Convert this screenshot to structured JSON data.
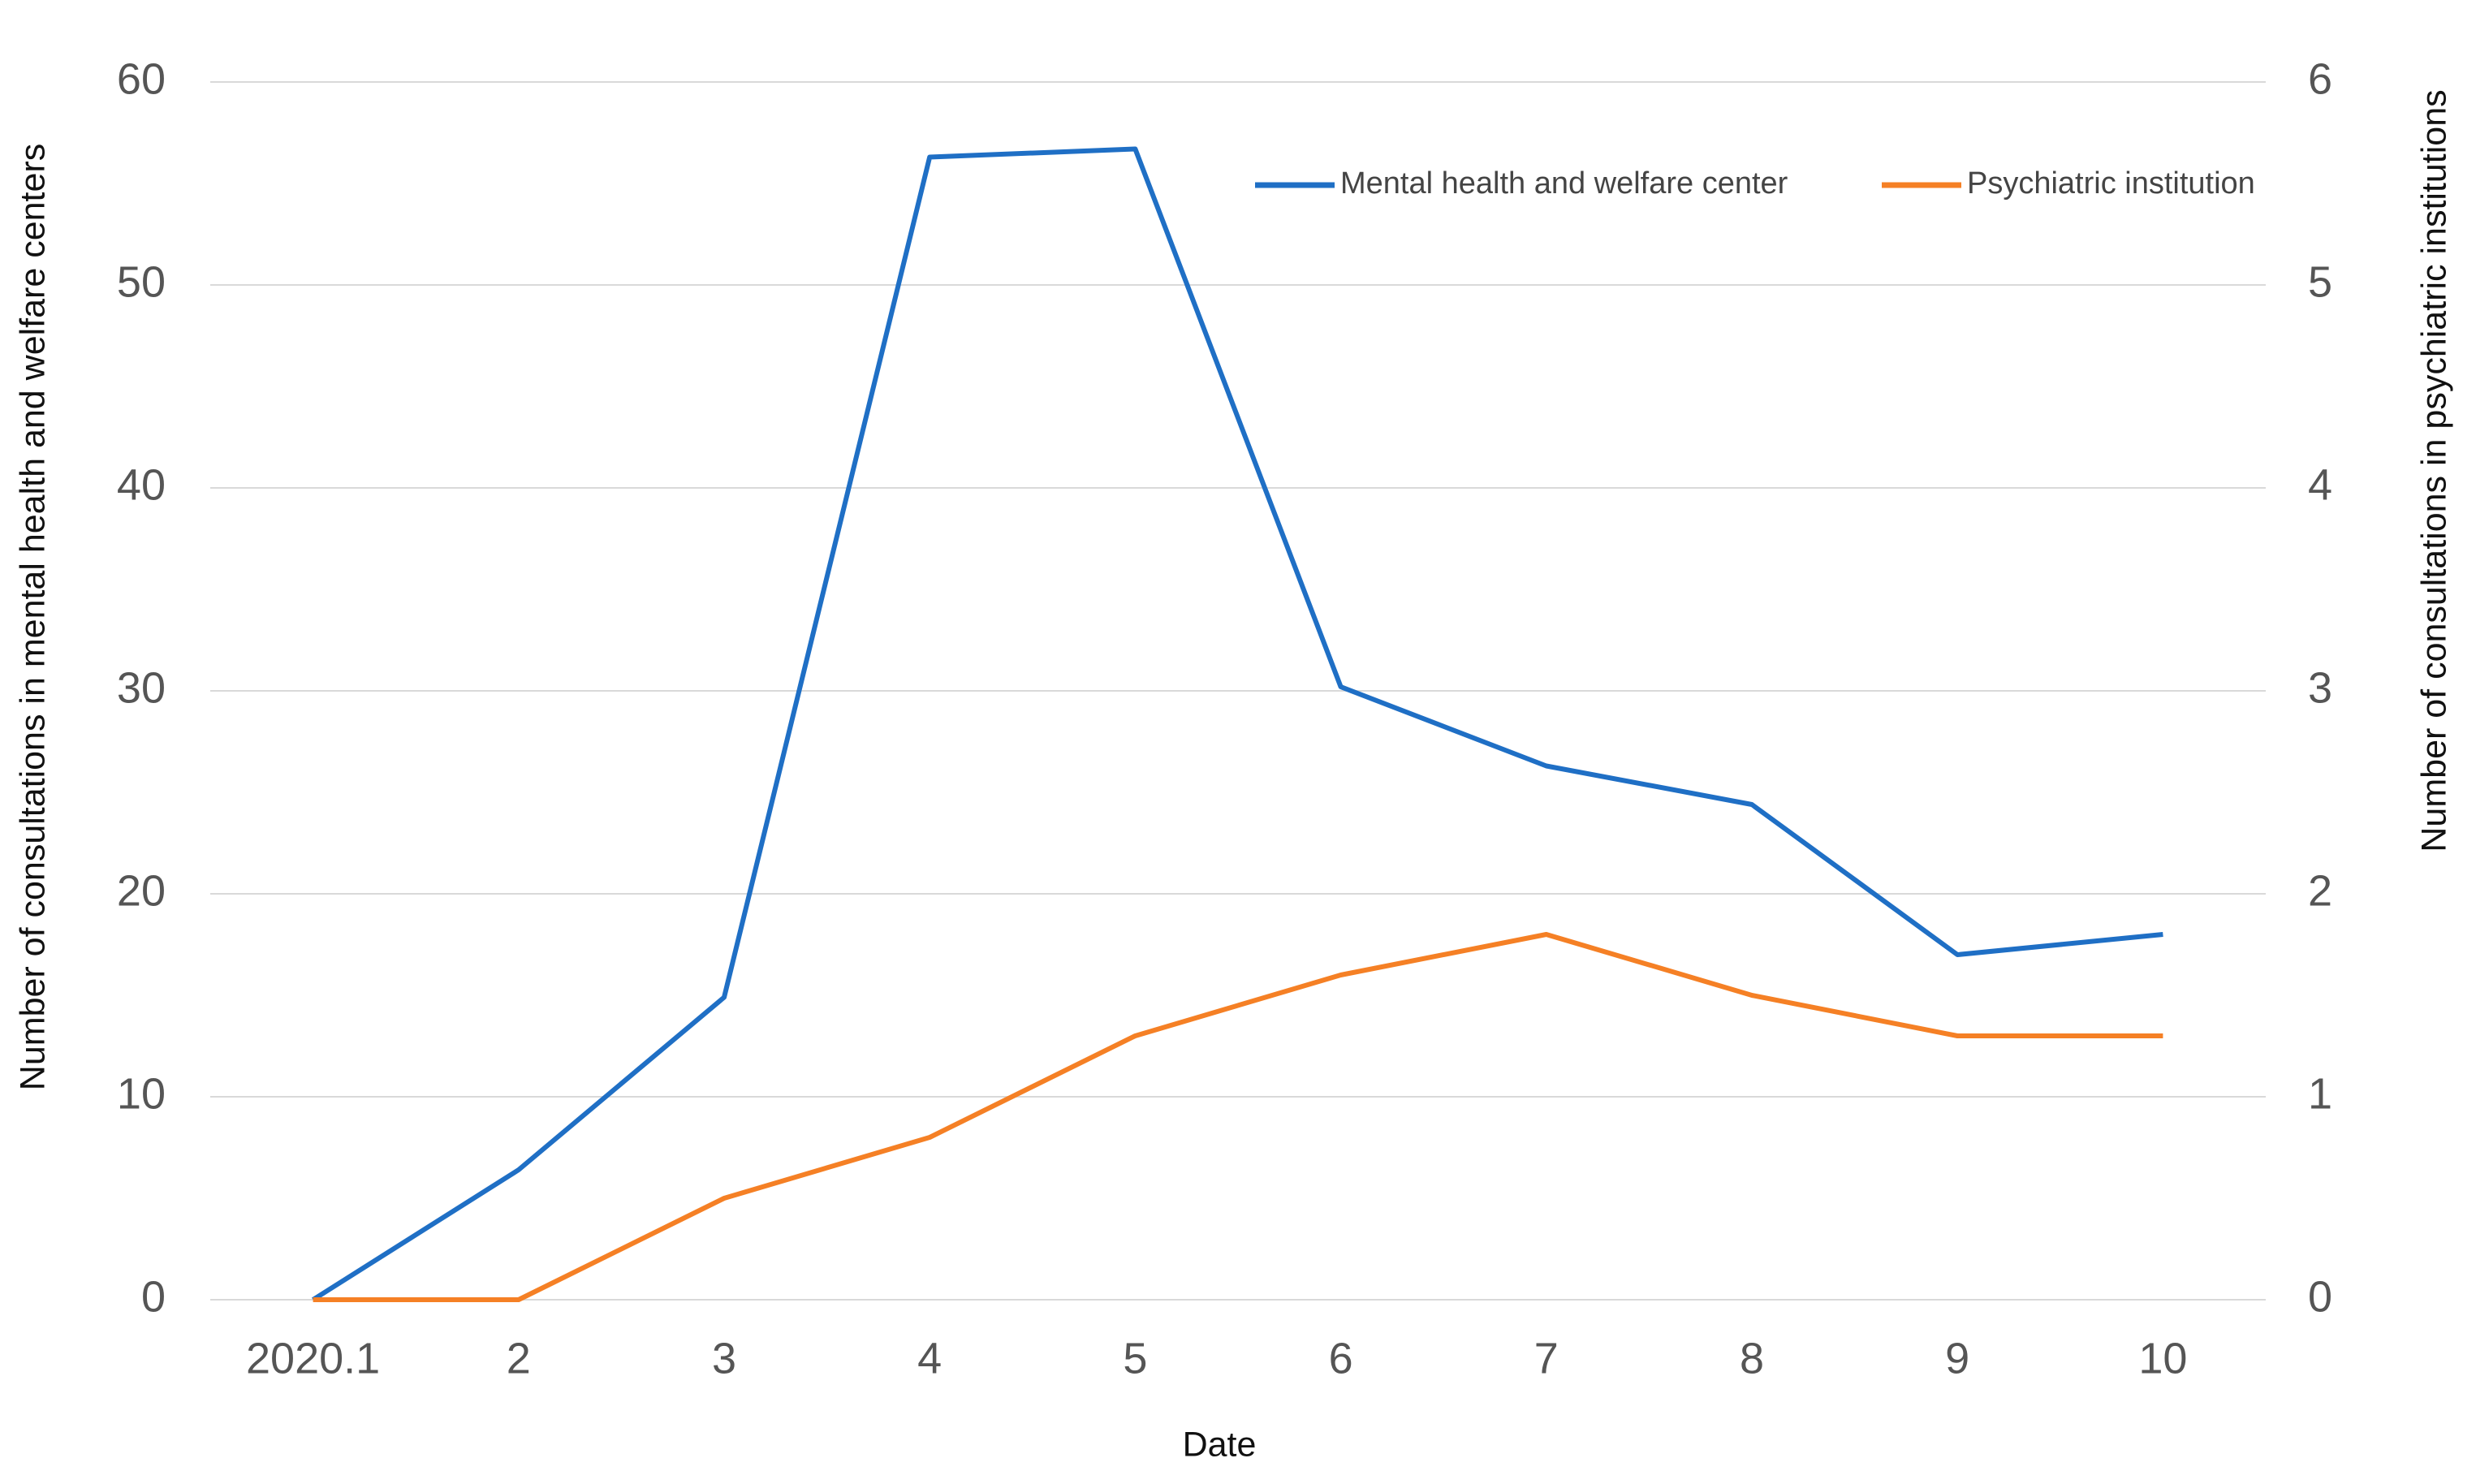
{
  "chart_data": {
    "type": "line",
    "x_label": "Date",
    "y_label": "Number of consultations in mental health and welfare centers",
    "y2_label": "Number of consultations in psychiatric institutions",
    "categories": [
      "2020.1",
      "2",
      "3",
      "4",
      "5",
      "6",
      "7",
      "8",
      "9",
      "10"
    ],
    "series": [
      {
        "name": "Mental health and welfare center",
        "color": "#1f6fc5",
        "values": [
          0,
          6.4,
          14.9,
          56.3,
          56.7,
          30.2,
          26.3,
          24.4,
          17.0,
          18.0
        ]
      },
      {
        "name": "Psychiatric institution",
        "color": "#f58025",
        "axis": "y2",
        "values": [
          0,
          0,
          0.5,
          0.8,
          1.3,
          1.6,
          1.8,
          1.5,
          1.3,
          1.3
        ]
      }
    ],
    "ylim": [
      0,
      60
    ],
    "yticks": [
      0,
      10,
      20,
      30,
      40,
      50,
      60
    ],
    "y2lim": [
      0,
      6
    ],
    "y2ticks": [
      0,
      1,
      2,
      3,
      4,
      5,
      6
    ],
    "grid": true,
    "legend": "upper right"
  }
}
